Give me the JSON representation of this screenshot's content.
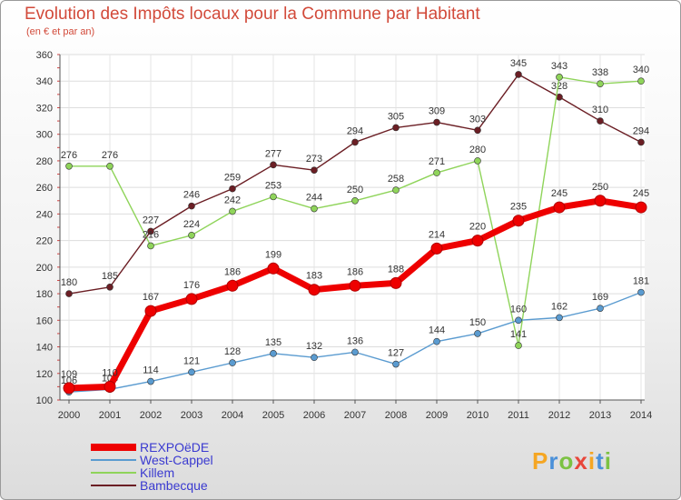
{
  "chart_data": {
    "type": "line",
    "title": "Evolution des Impôts locaux pour la Commune par Habitant",
    "subtitle": "(en € et par an)",
    "xlabel": "",
    "ylabel": "",
    "ylim": [
      100,
      360
    ],
    "yticks": [
      100,
      120,
      140,
      160,
      180,
      200,
      220,
      240,
      260,
      280,
      300,
      320,
      340,
      360
    ],
    "grid": true,
    "legend_position": "bottom-left",
    "categories": [
      "2000",
      "2001",
      "2002",
      "2003",
      "2004",
      "2005",
      "2006",
      "2007",
      "2008",
      "2009",
      "2010",
      "2011",
      "2012",
      "2013",
      "2014"
    ],
    "series": [
      {
        "name": "Bambecque",
        "color": "#6b1e24",
        "values": [
          180,
          185,
          227,
          246,
          259,
          277,
          273,
          294,
          305,
          309,
          303,
          345,
          328,
          310,
          294
        ]
      },
      {
        "name": "Killem",
        "color": "#8fd45a",
        "values": [
          276,
          276,
          216,
          224,
          242,
          253,
          244,
          250,
          258,
          271,
          280,
          141,
          343,
          338,
          340
        ]
      },
      {
        "name": "West-Cappel",
        "color": "#5a9bd0",
        "values": [
          106,
          108,
          114,
          121,
          128,
          135,
          132,
          136,
          127,
          144,
          150,
          160,
          162,
          169,
          181
        ]
      },
      {
        "name": "REXPOëDE",
        "color": "#ee0000",
        "values": [
          109,
          110,
          167,
          176,
          186,
          199,
          183,
          186,
          188,
          214,
          220,
          235,
          245,
          250,
          245
        ]
      }
    ],
    "legend": [
      "REXPOëDE",
      "West-Cappel",
      "Killem",
      "Bambecque"
    ]
  },
  "logo": {
    "text": "Proxiti"
  }
}
